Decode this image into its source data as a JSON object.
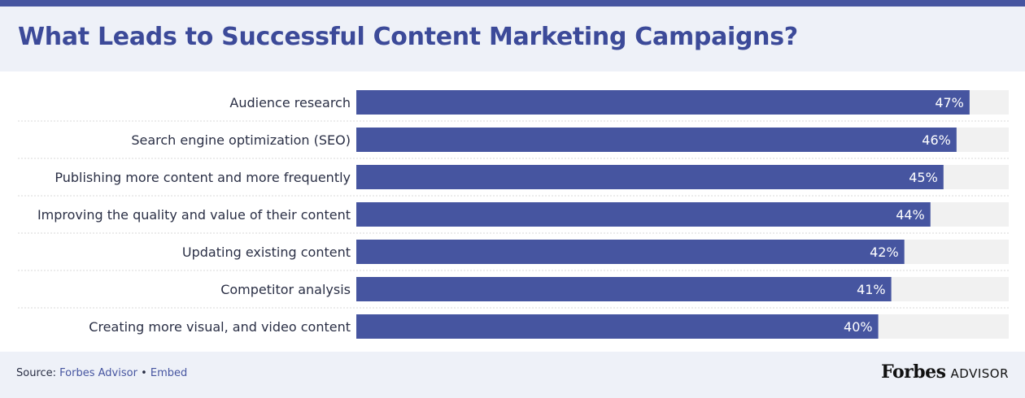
{
  "title": "What Leads to Successful Content Marketing Campaigns?",
  "footer": {
    "source_label": "Source:",
    "source_name": "Forbes Advisor",
    "separator": "•",
    "embed_label": "Embed",
    "brand_name": "Forbes",
    "brand_suffix": "ADVISOR"
  },
  "colors": {
    "bar": "#4655a0",
    "track": "#f1f1f1",
    "title": "#3c4a99",
    "header_bg": "#eef1f8"
  },
  "chart_data": {
    "type": "bar",
    "orientation": "horizontal",
    "title": "What Leads to Successful Content Marketing Campaigns?",
    "xlabel": "",
    "ylabel": "",
    "xlim": [
      0,
      50
    ],
    "grid": false,
    "legend": "none",
    "categories": [
      "Audience research",
      "Search engine optimization (SEO)",
      "Publishing more content and more frequently",
      "Improving the quality and value of their content",
      "Updating existing content",
      "Competitor analysis",
      "Creating more visual, and video content"
    ],
    "values": [
      47,
      46,
      45,
      44,
      42,
      41,
      40
    ],
    "value_labels": [
      "47%",
      "46%",
      "45%",
      "44%",
      "42%",
      "41%",
      "40%"
    ]
  }
}
